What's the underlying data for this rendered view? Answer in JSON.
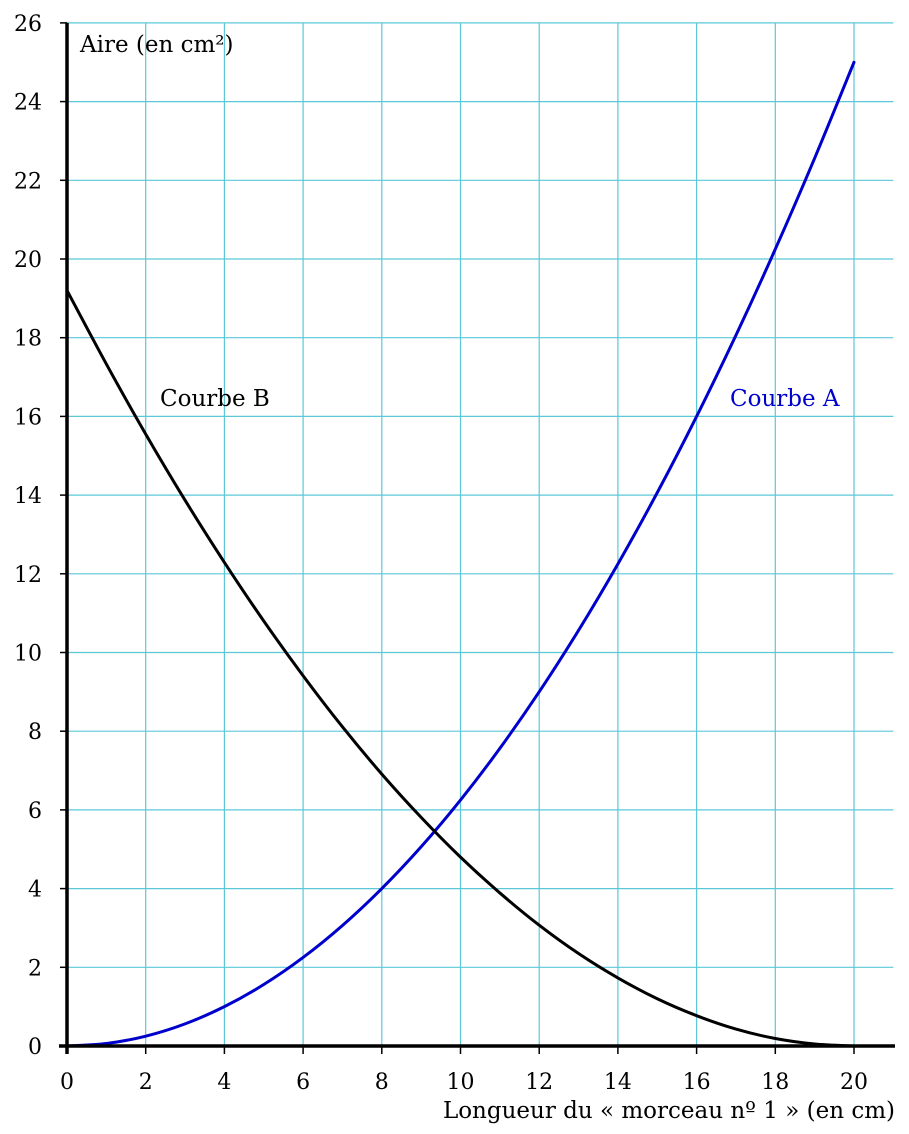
{
  "chart_data": {
    "type": "line",
    "xlabel": "Longueur du « morceau nº 1 » (en cm)",
    "ylabel": "Aire (en cm²)",
    "xlim": [
      0,
      21
    ],
    "ylim": [
      0,
      26
    ],
    "x_ticks": [
      0,
      2,
      4,
      6,
      8,
      10,
      12,
      14,
      16,
      18,
      20
    ],
    "y_ticks": [
      0,
      2,
      4,
      6,
      8,
      10,
      12,
      14,
      16,
      18,
      20,
      22,
      24,
      26
    ],
    "grid": true,
    "grid_step_x": 2,
    "grid_step_y": 2,
    "colors": {
      "grid": "#5bc8d8",
      "axis": "#000000",
      "curve_a": "#0000cc",
      "curve_b": "#000000"
    },
    "series": [
      {
        "name": "Courbe A",
        "x": [
          0,
          1,
          2,
          3,
          4,
          5,
          6,
          7,
          8,
          9,
          10,
          11,
          12,
          13,
          14,
          15,
          16,
          17,
          18,
          19,
          20
        ],
        "values": [
          0,
          0.0625,
          0.25,
          0.5625,
          1,
          1.5625,
          2.25,
          3.0625,
          4,
          5.0625,
          6.25,
          7.5625,
          9,
          10.5625,
          12.25,
          14.0625,
          16,
          18.0625,
          20.25,
          22.5625,
          25
        ]
      },
      {
        "name": "Courbe B",
        "x": [
          0,
          1,
          2,
          3,
          4,
          5,
          6,
          7,
          8,
          9,
          10,
          11,
          12,
          13,
          14,
          15,
          16,
          17,
          18,
          19,
          20
        ],
        "values": [
          19.2,
          17.33,
          15.55,
          13.87,
          12.29,
          10.8,
          9.41,
          8.11,
          6.91,
          5.81,
          4.8,
          3.89,
          3.07,
          2.35,
          1.73,
          1.2,
          0.77,
          0.43,
          0.19,
          0.05,
          0
        ]
      }
    ]
  }
}
